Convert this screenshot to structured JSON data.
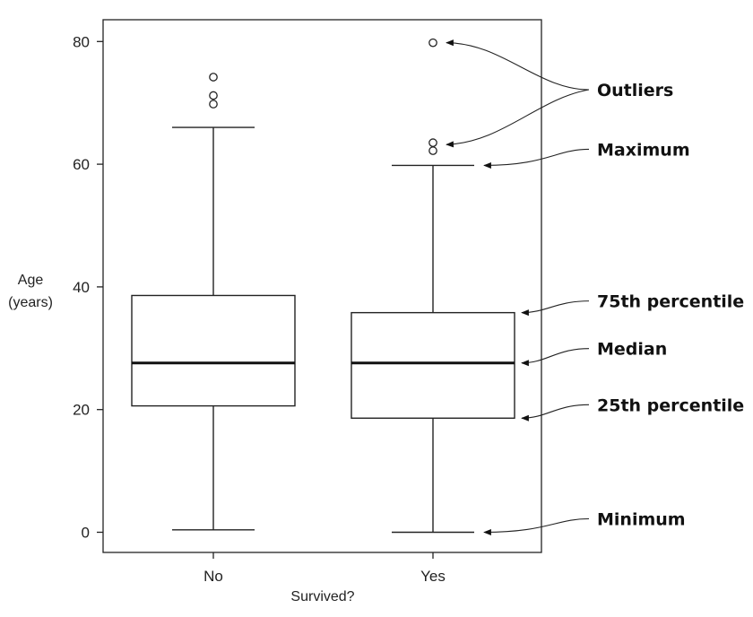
{
  "chart_data": {
    "type": "box",
    "xlabel": "Survived?",
    "ylabel_lines": [
      "Age",
      "(years)"
    ],
    "ylim": [
      -3,
      84
    ],
    "yticks": [
      0,
      20,
      40,
      60,
      80
    ],
    "categories": [
      "No",
      "Yes"
    ],
    "boxes": [
      {
        "category": "No",
        "min": 0.4,
        "q1": 20.6,
        "median": 27.6,
        "q3": 38.6,
        "max": 66.0,
        "outliers": [
          69.8,
          71.2,
          74.2
        ]
      },
      {
        "category": "Yes",
        "min": 0.0,
        "q1": 18.6,
        "median": 27.6,
        "q3": 35.8,
        "max": 59.8,
        "outliers": [
          62.2,
          63.5,
          79.8
        ]
      }
    ],
    "annotations": [
      {
        "label": "Outliers",
        "points_to": [
          "Yes.outlier.79.8",
          "Yes.outlier.63.5"
        ]
      },
      {
        "label": "Maximum",
        "points_to": [
          "Yes.max"
        ]
      },
      {
        "label": "75th percentile",
        "points_to": [
          "Yes.q3"
        ]
      },
      {
        "label": "Median",
        "points_to": [
          "Yes.median"
        ]
      },
      {
        "label": "25th percentile",
        "points_to": [
          "Yes.q1"
        ]
      },
      {
        "label": "Minimum",
        "points_to": [
          "Yes.min"
        ]
      }
    ],
    "grid": false
  }
}
